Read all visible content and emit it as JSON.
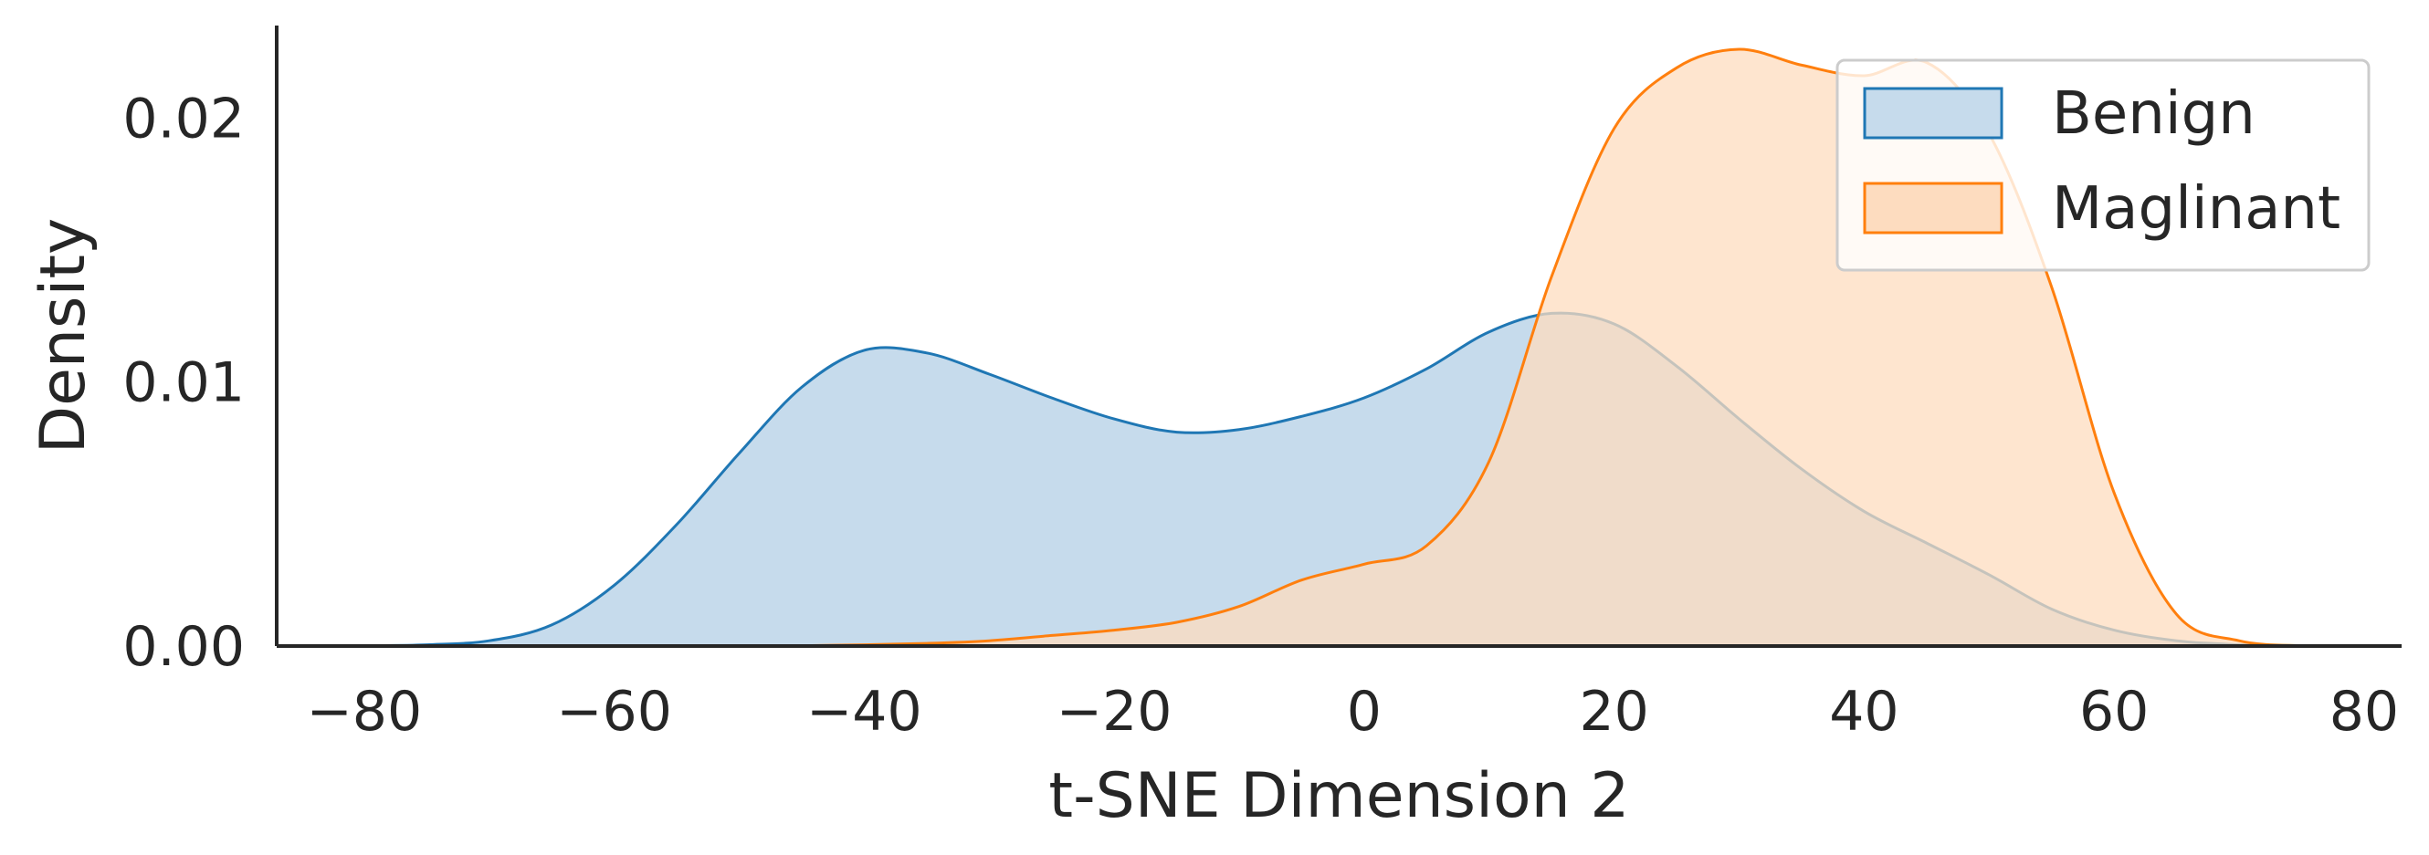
{
  "chart_data": {
    "type": "area",
    "title": "",
    "xlabel": "t-SNE Dimension 2",
    "ylabel": "Density",
    "xlim": [
      -87,
      83
    ],
    "ylim": [
      0,
      0.0235
    ],
    "x_ticks": [
      -80,
      -60,
      -40,
      -20,
      0,
      20,
      40,
      60,
      80
    ],
    "x_tick_labels": [
      "−80",
      "−60",
      "−40",
      "−20",
      "0",
      "20",
      "40",
      "60",
      "80"
    ],
    "y_ticks": [
      0,
      0.01,
      0.02
    ],
    "y_tick_labels": [
      "0.00",
      "0.01",
      "0.02"
    ],
    "grid": false,
    "legend_position": "top-right",
    "series": [
      {
        "name": "Benign",
        "line_color": "#1f77b4",
        "fill_color": "#c6dbec",
        "x": [
          -80,
          -75,
          -70,
          -65,
          -60,
          -55,
          -50,
          -45,
          -40,
          -35,
          -30,
          -25,
          -20,
          -15,
          -10,
          -5,
          0,
          5,
          10,
          15,
          20,
          25,
          30,
          35,
          40,
          45,
          50,
          55,
          60,
          65,
          70,
          75
        ],
        "y": [
          1e-05,
          5e-05,
          0.0002,
          0.0008,
          0.0023,
          0.0046,
          0.0073,
          0.0098,
          0.0112,
          0.0111,
          0.0103,
          0.0094,
          0.0086,
          0.0081,
          0.0082,
          0.0087,
          0.0094,
          0.0105,
          0.0119,
          0.0126,
          0.0122,
          0.0106,
          0.0086,
          0.0067,
          0.0051,
          0.0039,
          0.0027,
          0.0014,
          0.0006,
          0.0002,
          5e-05,
          1e-05
        ]
      },
      {
        "name": "Maglinant",
        "line_color": "#ff7f0e",
        "fill_color": "#fddcbf",
        "x": [
          -45,
          -40,
          -35,
          -30,
          -25,
          -20,
          -15,
          -10,
          -5,
          0,
          5,
          10,
          15,
          20,
          25,
          30,
          35,
          40,
          45,
          50,
          55,
          60,
          65,
          70,
          75
        ],
        "y": [
          1e-05,
          5e-05,
          0.0001,
          0.0002,
          0.0004,
          0.0006,
          0.0009,
          0.0015,
          0.0025,
          0.0031,
          0.0038,
          0.007,
          0.014,
          0.0196,
          0.0219,
          0.0226,
          0.022,
          0.0216,
          0.0221,
          0.0194,
          0.0136,
          0.0058,
          0.0012,
          0.0002,
          1e-05
        ]
      }
    ]
  }
}
